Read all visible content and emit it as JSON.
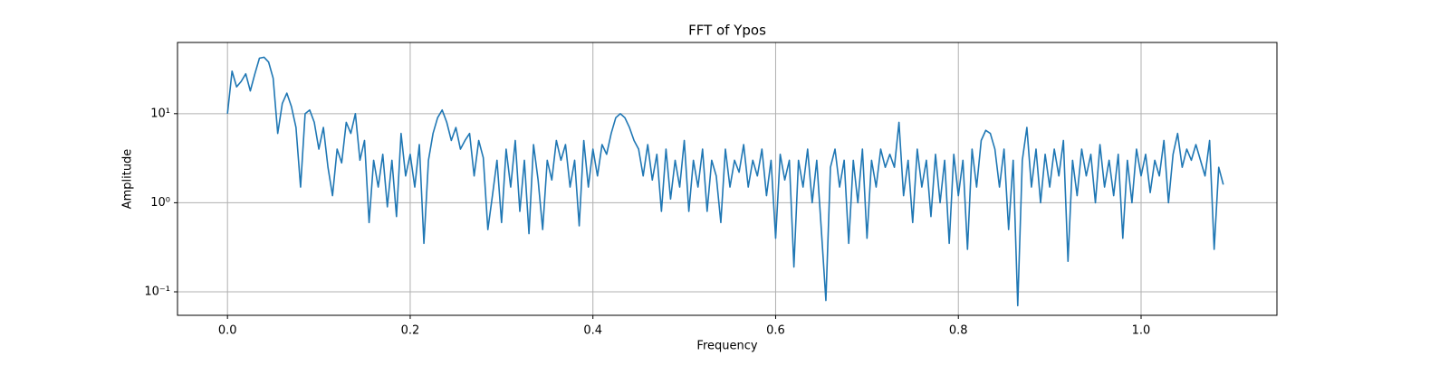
{
  "chart_data": {
    "type": "line",
    "title": "FFT of Ypos",
    "xlabel": "Frequency",
    "ylabel": "Amplitude",
    "yscale": "log",
    "grid": true,
    "xlim": [
      -0.0547,
      1.1487
    ],
    "ylim": [
      0.0545,
      63
    ],
    "xticks": [
      {
        "value": 0,
        "label": "0.0"
      },
      0.2,
      0.4,
      0.6,
      0.8,
      {
        "value": 1,
        "label": "1.0"
      }
    ],
    "yticks": [
      {
        "value": 0.1,
        "label": "10⁻¹"
      },
      {
        "value": 1,
        "label": "10⁰"
      },
      {
        "value": 10,
        "label": "10¹"
      }
    ],
    "x": [
      0,
      0.005,
      0.01,
      0.015,
      0.02,
      0.025,
      0.03,
      0.035,
      0.04,
      0.045,
      0.05,
      0.055,
      0.06,
      0.065,
      0.07,
      0.075,
      0.08,
      0.085,
      0.09,
      0.095,
      0.1,
      0.105,
      0.11,
      0.115,
      0.12,
      0.125,
      0.13,
      0.135,
      0.14,
      0.145,
      0.15,
      0.155,
      0.16,
      0.165,
      0.17,
      0.175,
      0.18,
      0.185,
      0.19,
      0.195,
      0.2,
      0.205,
      0.21,
      0.215,
      0.22,
      0.225,
      0.23,
      0.235,
      0.24,
      0.245,
      0.25,
      0.255,
      0.26,
      0.265,
      0.27,
      0.275,
      0.28,
      0.285,
      0.29,
      0.295,
      0.3,
      0.305,
      0.31,
      0.315,
      0.32,
      0.325,
      0.33,
      0.335,
      0.34,
      0.345,
      0.35,
      0.355,
      0.36,
      0.365,
      0.37,
      0.375,
      0.38,
      0.385,
      0.39,
      0.395,
      0.4,
      0.405,
      0.41,
      0.415,
      0.42,
      0.425,
      0.43,
      0.435,
      0.44,
      0.445,
      0.45,
      0.455,
      0.46,
      0.465,
      0.47,
      0.475,
      0.48,
      0.485,
      0.49,
      0.495,
      0.5,
      0.505,
      0.51,
      0.515,
      0.52,
      0.525,
      0.53,
      0.535,
      0.54,
      0.545,
      0.55,
      0.555,
      0.56,
      0.565,
      0.57,
      0.575,
      0.58,
      0.585,
      0.59,
      0.595,
      0.6,
      0.605,
      0.61,
      0.615,
      0.62,
      0.625,
      0.63,
      0.635,
      0.64,
      0.645,
      0.65,
      0.655,
      0.66,
      0.665,
      0.67,
      0.675,
      0.68,
      0.685,
      0.69,
      0.695,
      0.7,
      0.705,
      0.71,
      0.715,
      0.72,
      0.725,
      0.73,
      0.735,
      0.74,
      0.745,
      0.75,
      0.755,
      0.76,
      0.765,
      0.77,
      0.775,
      0.78,
      0.785,
      0.79,
      0.795,
      0.8,
      0.805,
      0.81,
      0.815,
      0.82,
      0.825,
      0.83,
      0.835,
      0.84,
      0.845,
      0.85,
      0.855,
      0.86,
      0.865,
      0.87,
      0.875,
      0.88,
      0.885,
      0.89,
      0.895,
      0.9,
      0.905,
      0.91,
      0.915,
      0.92,
      0.925,
      0.93,
      0.935,
      0.94,
      0.945,
      0.95,
      0.955,
      0.96,
      0.965,
      0.97,
      0.975,
      0.98,
      0.985,
      0.99,
      0.995,
      1,
      1.005,
      1.01,
      1.015,
      1.02,
      1.025,
      1.03,
      1.035,
      1.04,
      1.045,
      1.05,
      1.055,
      1.06,
      1.065,
      1.07,
      1.075,
      1.08,
      1.085,
      1.09
    ],
    "series": [
      {
        "color": "#1f77b4",
        "values": [
          10,
          30,
          20,
          23,
          28,
          18,
          28,
          42,
          43,
          38,
          25,
          6,
          13,
          17,
          12,
          7,
          1.5,
          10,
          11,
          8,
          4,
          7,
          2.5,
          1.2,
          4,
          2.8,
          8,
          6,
          10,
          3,
          5,
          0.6,
          3,
          1.5,
          3.5,
          0.9,
          3,
          0.7,
          6,
          2,
          3.5,
          1.5,
          4.5,
          0.35,
          3,
          6,
          9,
          11,
          8,
          5,
          7,
          4,
          5,
          6,
          2,
          5,
          3.2,
          0.5,
          1.2,
          3,
          0.6,
          4,
          1.5,
          5,
          0.8,
          3,
          0.45,
          4.5,
          1.8,
          0.5,
          3,
          1.8,
          5,
          3,
          4.5,
          1.5,
          3,
          0.55,
          5,
          1.5,
          4,
          2,
          4.5,
          3.5,
          6,
          9,
          10,
          9,
          7,
          5,
          4,
          2,
          4.5,
          1.8,
          3.5,
          0.8,
          4,
          1.1,
          3,
          1.5,
          5,
          0.8,
          3,
          1.5,
          4,
          0.8,
          3,
          2,
          0.6,
          4,
          1.5,
          3,
          2.2,
          4.5,
          1.5,
          3,
          2,
          4,
          1.2,
          3,
          0.4,
          3.5,
          1.8,
          3,
          0.19,
          3,
          1.5,
          4,
          1,
          3,
          0.5,
          0.08,
          2.5,
          4,
          1.5,
          3,
          0.35,
          3,
          1,
          4,
          0.4,
          3,
          1.5,
          4,
          2.5,
          3.5,
          2.5,
          8,
          1.2,
          3,
          0.6,
          4,
          1.5,
          3,
          0.7,
          3.5,
          1,
          3,
          0.35,
          3.5,
          1.2,
          3,
          0.3,
          4,
          1.5,
          5,
          6.5,
          6,
          4,
          1.5,
          4,
          0.5,
          3,
          0.07,
          3,
          7,
          1.5,
          4,
          1,
          3.5,
          1.5,
          4,
          2,
          5,
          0.22,
          3,
          1.2,
          4,
          2,
          3.5,
          1,
          4.5,
          1.5,
          3,
          1.2,
          3.5,
          0.4,
          3,
          1,
          4,
          2,
          3.5,
          1.3,
          3,
          2,
          5,
          1,
          3.5,
          6,
          2.5,
          4,
          3,
          4.5,
          3,
          2,
          5,
          0.3,
          2.5,
          1.6
        ]
      }
    ]
  }
}
